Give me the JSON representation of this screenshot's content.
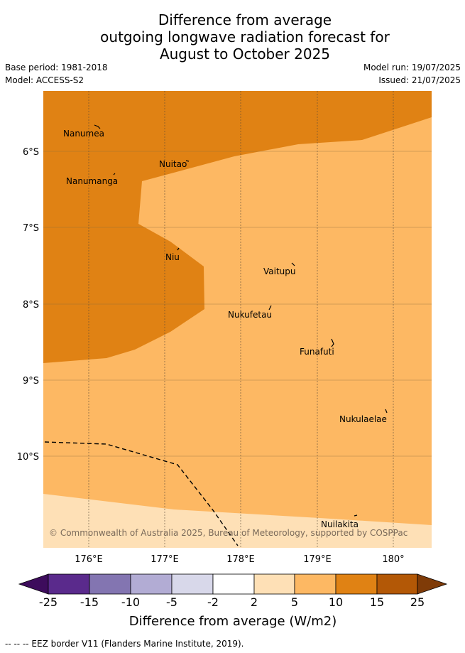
{
  "title": {
    "line1": "Difference from average",
    "line2": "outgoing longwave radiation forecast for",
    "line3": "August to October 2025"
  },
  "meta": {
    "base_period": "Base period: 1981-2018",
    "model": "Model: ACCESS-S2",
    "model_run": "Model run: 19/07/2025",
    "issued": "Issued: 21/07/2025"
  },
  "map": {
    "lat_ticks": [
      "6°S",
      "7°S",
      "8°S",
      "9°S",
      "10°S"
    ],
    "lon_ticks": [
      "176°E",
      "177°E",
      "178°E",
      "179°E",
      "180°"
    ],
    "places": [
      "Nanumea",
      "Nuitao",
      "Nanumanga",
      "Niu",
      "Vaitupu",
      "Nukufetau",
      "Funafuti",
      "Nukulaelae",
      "Nuilakita"
    ],
    "copyright": "© Commonwealth of Australia 2025, Bureau of Meteorology, supported by COSPPac"
  },
  "legend": {
    "ticks": [
      "-25",
      "-15",
      "-10",
      "-5",
      "-2",
      "2",
      "5",
      "10",
      "15",
      "25"
    ],
    "colors": [
      "#3d0c5c",
      "#5a2a8c",
      "#8375b1",
      "#b2acd4",
      "#d8d8ea",
      "#ffffff",
      "#fee0b6",
      "#fdb863",
      "#e08214",
      "#b35806",
      "#7f3b08"
    ],
    "label": "Difference from average (W/m2)"
  },
  "footnote": "-- -- -- EEZ border V11 (Flanders Marine Institute, 2019)."
}
